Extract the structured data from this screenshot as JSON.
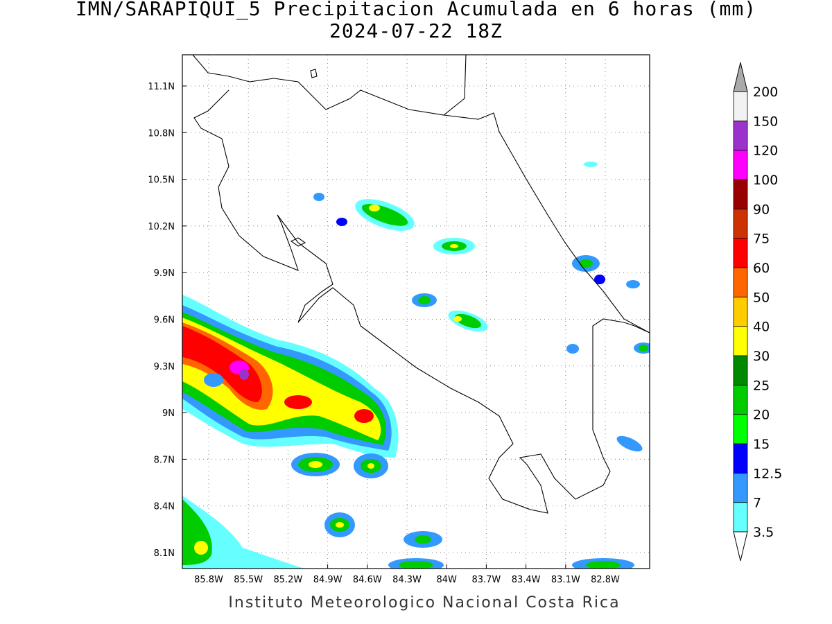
{
  "title": "IMN/SARAPIQUI_5 Precipitacion Acumulada en 6 horas (mm)",
  "subtitle": "2024-07-22 18Z",
  "map": {
    "xticks": [
      "85.8W",
      "85.5W",
      "85.2W",
      "84.9W",
      "84.6W",
      "84.3W",
      "84W",
      "83.7W",
      "83.4W",
      "83.1W",
      "82.8W"
    ],
    "yticks": [
      "11.1N",
      "10.8N",
      "10.5N",
      "10.2N",
      "9.9N",
      "9.6N",
      "9.3N",
      "9N",
      "8.7N",
      "8.4N",
      "8.1N"
    ]
  },
  "colorbar": {
    "levels": [
      3.5,
      7,
      12.5,
      15,
      20,
      25,
      30,
      40,
      50,
      60,
      75,
      90,
      100,
      120,
      150,
      200
    ],
    "colors": [
      "#66ffff",
      "#3399ff",
      "#0000ff",
      "#00ff00",
      "#00cc00",
      "#008800",
      "#ffff00",
      "#ffcc00",
      "#ff6600",
      "#ff0000",
      "#cc3300",
      "#990000",
      "#ff00ff",
      "#9933cc",
      "#f2f2f2"
    ],
    "over_color": "#aaaaaa",
    "under_color": "#ffffff"
  },
  "footer": "Instituto Meteorologico Nacional Costa Rica"
}
